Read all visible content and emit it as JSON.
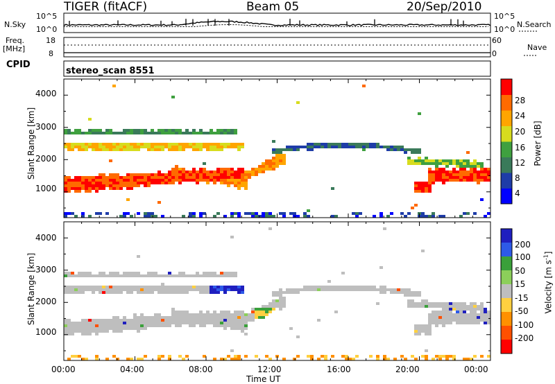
{
  "header": {
    "radar": "TIGER (fitACF)",
    "beam": "Beam 05",
    "date": "20/Sep/2010"
  },
  "top_panels": {
    "nsky_label": "N.Sky",
    "nsky_ticks": [
      "10^5",
      "10^0"
    ],
    "nsearch_label": "N.Search",
    "nsearch_ticks": [
      "10^5",
      "10^0"
    ],
    "freq_label": "Freq.",
    "freq_unit": "[MHz]",
    "freq_ticks": [
      "18",
      "8"
    ],
    "nave_label": "Nave",
    "nave_ticks": [
      "60",
      "0"
    ],
    "cpid_label": "CPID",
    "cpid_value": "stereo_scan 8551"
  },
  "chart_data": [
    {
      "type": "heatmap",
      "name": "power",
      "xlabel": "",
      "ylabel": "Slant Range [km]",
      "ylim": [
        200,
        4500
      ],
      "yticks": [
        "4000",
        "3000",
        "2000",
        "1000"
      ],
      "colorbar_label": "Power [dB]",
      "colorbar_ticks": [
        "28",
        "24",
        "20",
        "16",
        "12",
        "8",
        "4"
      ],
      "colors": [
        "#0000ff",
        "#1e3ca8",
        "#3a7a5a",
        "#3fa03f",
        "#d7dc1e",
        "#ffa500",
        "#ff6a00",
        "#ff0000"
      ]
    },
    {
      "type": "heatmap",
      "name": "velocity",
      "xlabel": "Time UT",
      "ylabel": "Slant Range [km]",
      "ylim": [
        200,
        4500
      ],
      "yticks": [
        "4000",
        "3000",
        "2000",
        "1000"
      ],
      "xticks": [
        "00:00",
        "04:00",
        "08:00",
        "12:00",
        "16:00",
        "20:00",
        "00:00"
      ],
      "colorbar_label": "Velocity [m s",
      "colorbar_exp": "-1",
      "colorbar_ticks": [
        "200",
        "100",
        "50",
        "15",
        "-15",
        "-50",
        "-100",
        "-200"
      ],
      "colors": [
        "#1f1fbf",
        "#2d5ae8",
        "#3aa03a",
        "#8ccf5a",
        "#bebebe",
        "#ffd040",
        "#ff9000",
        "#ff5000",
        "#ff0000"
      ]
    }
  ]
}
